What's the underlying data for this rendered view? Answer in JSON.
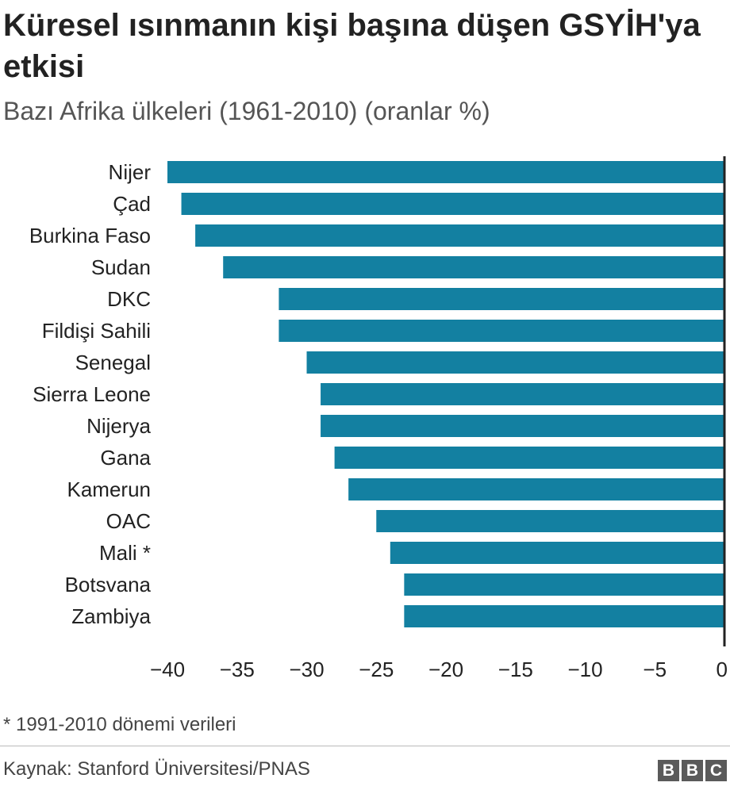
{
  "title": "Küresel ısınmanın kişi başına düşen GSYİH'ya etkisi",
  "subtitle": "Bazı Afrika ülkeleri (1961-2010) (oranlar %)",
  "footnote": "* 1991-2010 dönemi verileri",
  "source": "Kaynak: Stanford Üniversitesi/PNAS",
  "logo": [
    "B",
    "B",
    "C"
  ],
  "colors": {
    "bar": "#1380a1",
    "axis": "#222222",
    "text": "#222222"
  },
  "chart_data": {
    "type": "bar",
    "orientation": "horizontal",
    "categories": [
      "Nijer",
      "Çad",
      "Burkina Faso",
      "Sudan",
      "DKC",
      "Fildişi Sahili",
      "Senegal",
      "Sierra Leone",
      "Nijerya",
      "Gana",
      "Kamerun",
      "OAC",
      "Mali *",
      "Botsvana",
      "Zambiya"
    ],
    "values": [
      -40,
      -39,
      -38,
      -36,
      -32,
      -32,
      -30,
      -29,
      -29,
      -28,
      -27,
      -25,
      -24,
      -23,
      -23
    ],
    "xlim": [
      -40,
      0
    ],
    "xticks": [
      -40,
      -35,
      -30,
      -25,
      -20,
      -15,
      -10,
      -5,
      0
    ],
    "xtick_labels": [
      "−40",
      "−35",
      "−30",
      "−25",
      "−20",
      "−15",
      "−10",
      "−5",
      "0"
    ],
    "grid": false
  }
}
